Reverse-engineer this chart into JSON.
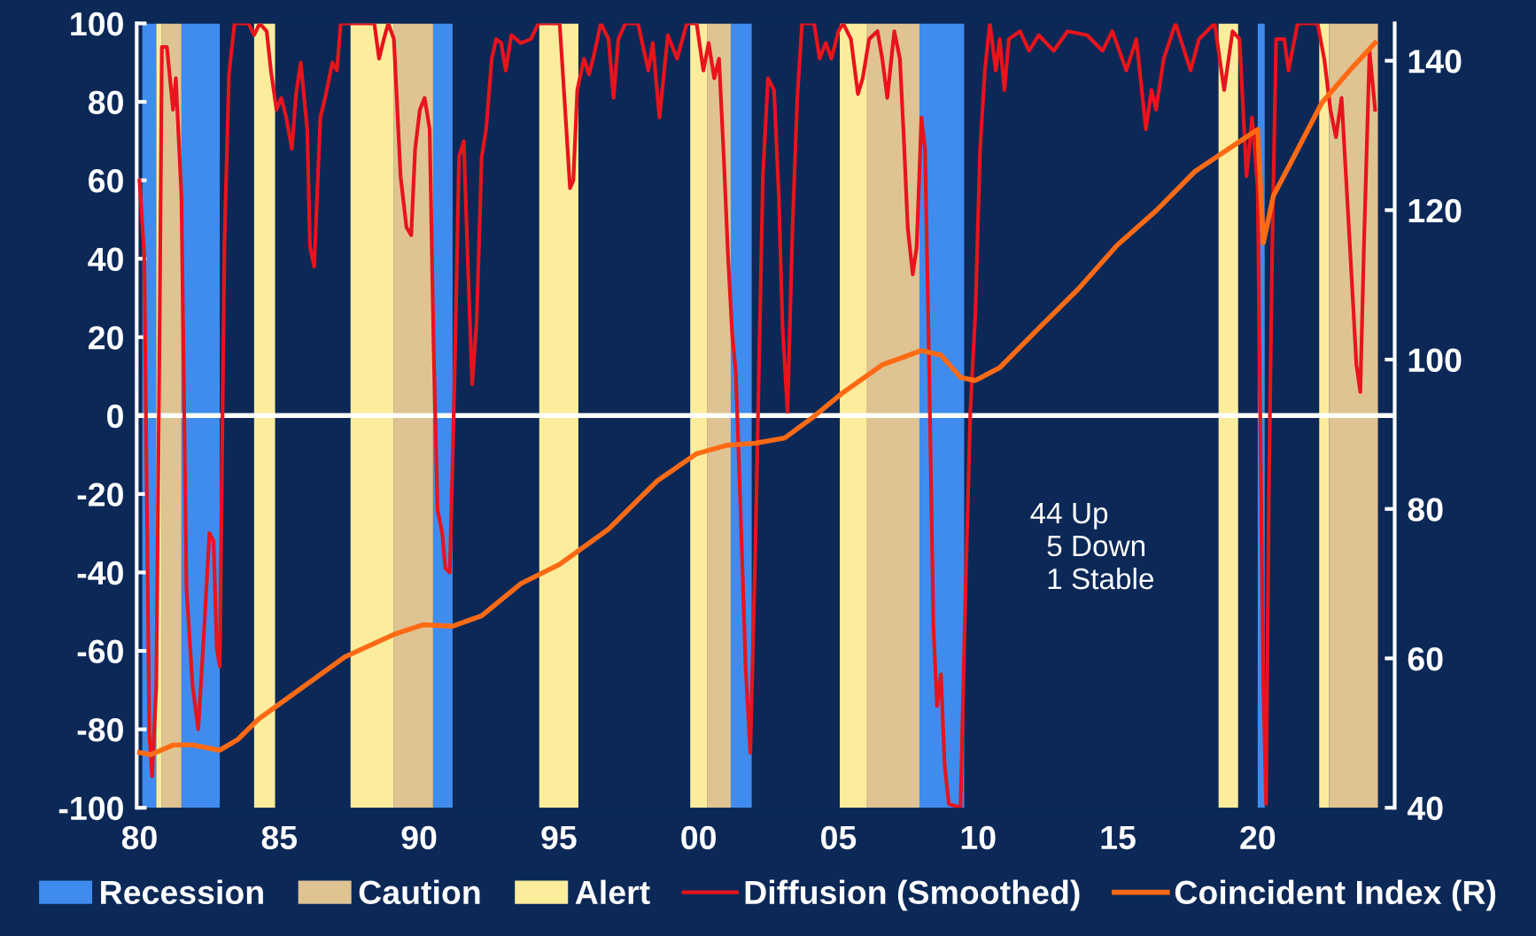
{
  "chart_data": {
    "type": "line",
    "xlim": [
      1979.9,
      2024.9
    ],
    "xticks": [
      {
        "value": 1980,
        "label": "80"
      },
      {
        "value": 1985,
        "label": "85"
      },
      {
        "value": 1990,
        "label": "90"
      },
      {
        "value": 1995,
        "label": "95"
      },
      {
        "value": 2000,
        "label": "00"
      },
      {
        "value": 2005,
        "label": "05"
      },
      {
        "value": 2010,
        "label": "10"
      },
      {
        "value": 2015,
        "label": "15"
      },
      {
        "value": 2020,
        "label": "20"
      }
    ],
    "ylim": [
      -100,
      100
    ],
    "yticks": [
      -100,
      -80,
      -60,
      -40,
      -20,
      0,
      20,
      40,
      60,
      80,
      100
    ],
    "y2lim": [
      40,
      145
    ],
    "y2ticks": [
      40,
      60,
      80,
      100,
      120,
      140
    ],
    "legend": "bottom",
    "grid": false,
    "series": [
      {
        "name": "Diffusion (Smoothed)",
        "color": "#e8141c",
        "x": [
          1980.0,
          1980.17,
          1980.35,
          1980.45,
          1980.6,
          1980.7,
          1980.8,
          1980.98,
          1981.2,
          1981.3,
          1981.5,
          1981.68,
          1981.9,
          1982.1,
          1982.3,
          1982.5,
          1982.65,
          1982.76,
          1982.87,
          1983.04,
          1983.2,
          1983.4,
          1983.9,
          1984.1,
          1984.3,
          1984.55,
          1984.7,
          1984.9,
          1985.07,
          1985.25,
          1985.45,
          1985.6,
          1985.77,
          1986.0,
          1986.1,
          1986.25,
          1986.47,
          1986.64,
          1986.9,
          1987.06,
          1987.2,
          1988.4,
          1988.57,
          1988.74,
          1988.9,
          1989.1,
          1989.34,
          1989.55,
          1989.72,
          1989.86,
          1990.03,
          1990.2,
          1990.38,
          1990.52,
          1990.66,
          1990.83,
          1990.94,
          1991.1,
          1991.26,
          1991.43,
          1991.6,
          1991.75,
          1991.9,
          1992.06,
          1992.24,
          1992.4,
          1992.6,
          1992.76,
          1992.94,
          1993.1,
          1993.3,
          1993.64,
          1994.0,
          1994.27,
          1995.03,
          1995.2,
          1995.4,
          1995.52,
          1995.66,
          1995.9,
          1996.08,
          1996.26,
          1996.5,
          1996.78,
          1996.96,
          1997.13,
          1997.38,
          1997.83,
          1998.2,
          1998.36,
          1998.6,
          1998.9,
          1999.23,
          1999.58,
          1999.93,
          2000.17,
          2000.36,
          2000.56,
          2000.73,
          2000.9,
          2001.05,
          2001.2,
          2001.33,
          2001.5,
          2001.68,
          2001.85,
          2002.03,
          2002.17,
          2002.3,
          2002.48,
          2002.7,
          2002.87,
          2003.0,
          2003.18,
          2003.36,
          2003.53,
          2003.7,
          2004.13,
          2004.33,
          2004.55,
          2004.75,
          2005.0,
          2005.17,
          2005.45,
          2005.7,
          2005.87,
          2006.1,
          2006.4,
          2006.57,
          2006.75,
          2007.0,
          2007.2,
          2007.34,
          2007.48,
          2007.66,
          2007.8,
          2007.97,
          2008.1,
          2008.25,
          2008.4,
          2008.53,
          2008.67,
          2008.8,
          2008.95,
          2009.37,
          2009.55,
          2009.72,
          2009.9,
          2010.07,
          2010.24,
          2010.42,
          2010.63,
          2010.77,
          2010.94,
          2011.1,
          2011.5,
          2011.82,
          2012.17,
          2012.7,
          2013.2,
          2013.9,
          2014.45,
          2014.8,
          2015.3,
          2015.66,
          2016.0,
          2016.2,
          2016.36,
          2016.64,
          2017.06,
          2017.6,
          2017.9,
          2018.46,
          2018.8,
          2019.1,
          2019.35,
          2019.6,
          2019.8,
          2020.0,
          2020.2,
          2020.3,
          2020.4,
          2020.52,
          2020.66,
          2020.95,
          2021.1,
          2021.43,
          2022.14,
          2022.38,
          2022.6,
          2022.8,
          2023.0,
          2023.3,
          2023.53,
          2023.67,
          2023.8,
          2024.0,
          2024.2
        ],
        "values": [
          60,
          41,
          -81,
          -92,
          -69,
          6,
          94,
          94,
          78,
          86,
          56,
          -44,
          -69,
          -80,
          -56,
          -30,
          -32,
          -59,
          -64,
          44,
          87,
          100,
          100,
          97,
          100,
          98,
          88,
          78,
          81,
          76,
          68,
          82,
          90,
          73,
          43,
          38,
          76,
          81,
          90,
          88,
          100,
          100,
          91,
          96,
          100,
          96,
          61,
          48,
          46,
          68,
          78,
          81,
          73,
          18,
          -24,
          -30,
          -39,
          -40,
          6,
          66,
          70,
          38,
          8,
          24,
          66,
          73,
          91,
          96,
          95,
          88,
          97,
          95,
          96,
          100,
          100,
          81,
          58,
          60,
          83,
          91,
          87,
          92,
          100,
          96,
          81,
          96,
          100,
          100,
          88,
          95,
          76,
          97,
          91,
          100,
          100,
          88,
          95,
          86,
          91,
          66,
          41,
          21,
          11,
          -24,
          -64,
          -86,
          -34,
          16,
          61,
          86,
          83,
          56,
          23,
          1,
          48,
          81,
          100,
          100,
          91,
          95,
          91,
          98,
          100,
          96,
          82,
          86,
          96,
          98,
          91,
          81,
          98,
          91,
          71,
          48,
          36,
          43,
          76,
          68,
          11,
          -54,
          -74,
          -66,
          -89,
          -99,
          -100,
          -44,
          1,
          26,
          68,
          88,
          100,
          88,
          96,
          83,
          96,
          98,
          93,
          97,
          93,
          98,
          97,
          93,
          98,
          88,
          96,
          73,
          83,
          78,
          91,
          100,
          88,
          96,
          100,
          83,
          98,
          96,
          61,
          76,
          58,
          -69,
          -99,
          -19,
          43,
          96,
          96,
          88,
          100,
          100,
          91,
          78,
          71,
          81,
          43,
          13,
          6,
          43,
          93,
          78
        ]
      },
      {
        "name": "Coincident Index (R)",
        "color": "#ff6a14",
        "axis": "y2",
        "x": [
          1980.0,
          1980.4,
          1981.2,
          1981.9,
          1982.87,
          1983.5,
          1984.27,
          1985.6,
          1987.35,
          1989.1,
          1990.14,
          1991.2,
          1992.24,
          1993.64,
          1995.03,
          1996.78,
          1998.53,
          1999.93,
          2000.98,
          2002.03,
          2003.08,
          2004.13,
          2005.17,
          2006.57,
          2007.97,
          2008.67,
          2009.37,
          2009.9,
          2010.77,
          2012.17,
          2013.57,
          2014.97,
          2016.36,
          2017.76,
          2019.16,
          2020.0,
          2020.2,
          2020.56,
          2021.26,
          2022.3,
          2023.36,
          2024.2
        ],
        "values": [
          47.4,
          47.1,
          48.4,
          48.4,
          47.7,
          49.1,
          51.9,
          55.5,
          60.2,
          63.2,
          64.5,
          64.3,
          65.7,
          70.0,
          72.6,
          77.3,
          83.8,
          87.4,
          88.5,
          88.8,
          89.5,
          92.4,
          95.6,
          99.3,
          101.2,
          100.6,
          97.6,
          97.2,
          98.9,
          104.2,
          109.4,
          115.3,
          119.9,
          125.2,
          128.7,
          130.8,
          115.6,
          121.9,
          126.9,
          134.4,
          139.0,
          142.4
        ]
      }
    ],
    "bands": [
      {
        "axis": "x",
        "from": 1980.1,
        "to": 1980.6,
        "color": "#3f8cee"
      },
      {
        "axis": "x",
        "from": 1981.5,
        "to": 1982.87,
        "color": "#3f8cee"
      },
      {
        "axis": "x",
        "from": 1990.5,
        "to": 1991.2,
        "color": "#3f8cee"
      },
      {
        "axis": "x",
        "from": 2001.15,
        "to": 2001.9,
        "color": "#3f8cee"
      },
      {
        "axis": "x",
        "from": 2007.9,
        "to": 2009.5,
        "label": "Recession",
        "color": "#3f8cee"
      },
      {
        "axis": "x",
        "from": 2020.0,
        "to": 2020.25,
        "color": "#3f8cee"
      },
      {
        "axis": "x",
        "from": 1980.8,
        "to": 1981.5,
        "label": "Caution",
        "color": "#dfc393"
      },
      {
        "axis": "x",
        "from": 1989.1,
        "to": 1990.5,
        "color": "#dfc393"
      },
      {
        "axis": "x",
        "from": 2000.3,
        "to": 2001.15,
        "color": "#dfc393"
      },
      {
        "axis": "x",
        "from": 2006.0,
        "to": 2007.9,
        "color": "#dfc393"
      },
      {
        "axis": "x",
        "from": 2022.55,
        "to": 2024.3,
        "color": "#dfc393"
      },
      {
        "axis": "x",
        "from": 1980.6,
        "to": 1980.8,
        "label": "Alert",
        "color": "#fbed9c"
      },
      {
        "axis": "x",
        "from": 1984.1,
        "to": 1984.85,
        "color": "#fbed9c"
      },
      {
        "axis": "x",
        "from": 1987.55,
        "to": 1989.1,
        "color": "#fbed9c"
      },
      {
        "axis": "x",
        "from": 1994.3,
        "to": 1995.7,
        "color": "#fbed9c"
      },
      {
        "axis": "x",
        "from": 1999.7,
        "to": 2000.3,
        "color": "#fbed9c"
      },
      {
        "axis": "x",
        "from": 2005.05,
        "to": 2006.0,
        "color": "#fbed9c"
      },
      {
        "axis": "x",
        "from": 2018.6,
        "to": 2019.3,
        "color": "#fbed9c"
      },
      {
        "axis": "x",
        "from": 2022.2,
        "to": 2022.55,
        "color": "#fbed9c"
      }
    ],
    "ref_lines": [
      {
        "axis": "y",
        "value": 0,
        "color": "#ffffff"
      }
    ],
    "annotations": [
      "44 Up\n  5 Down\n  1 Stable"
    ]
  }
}
